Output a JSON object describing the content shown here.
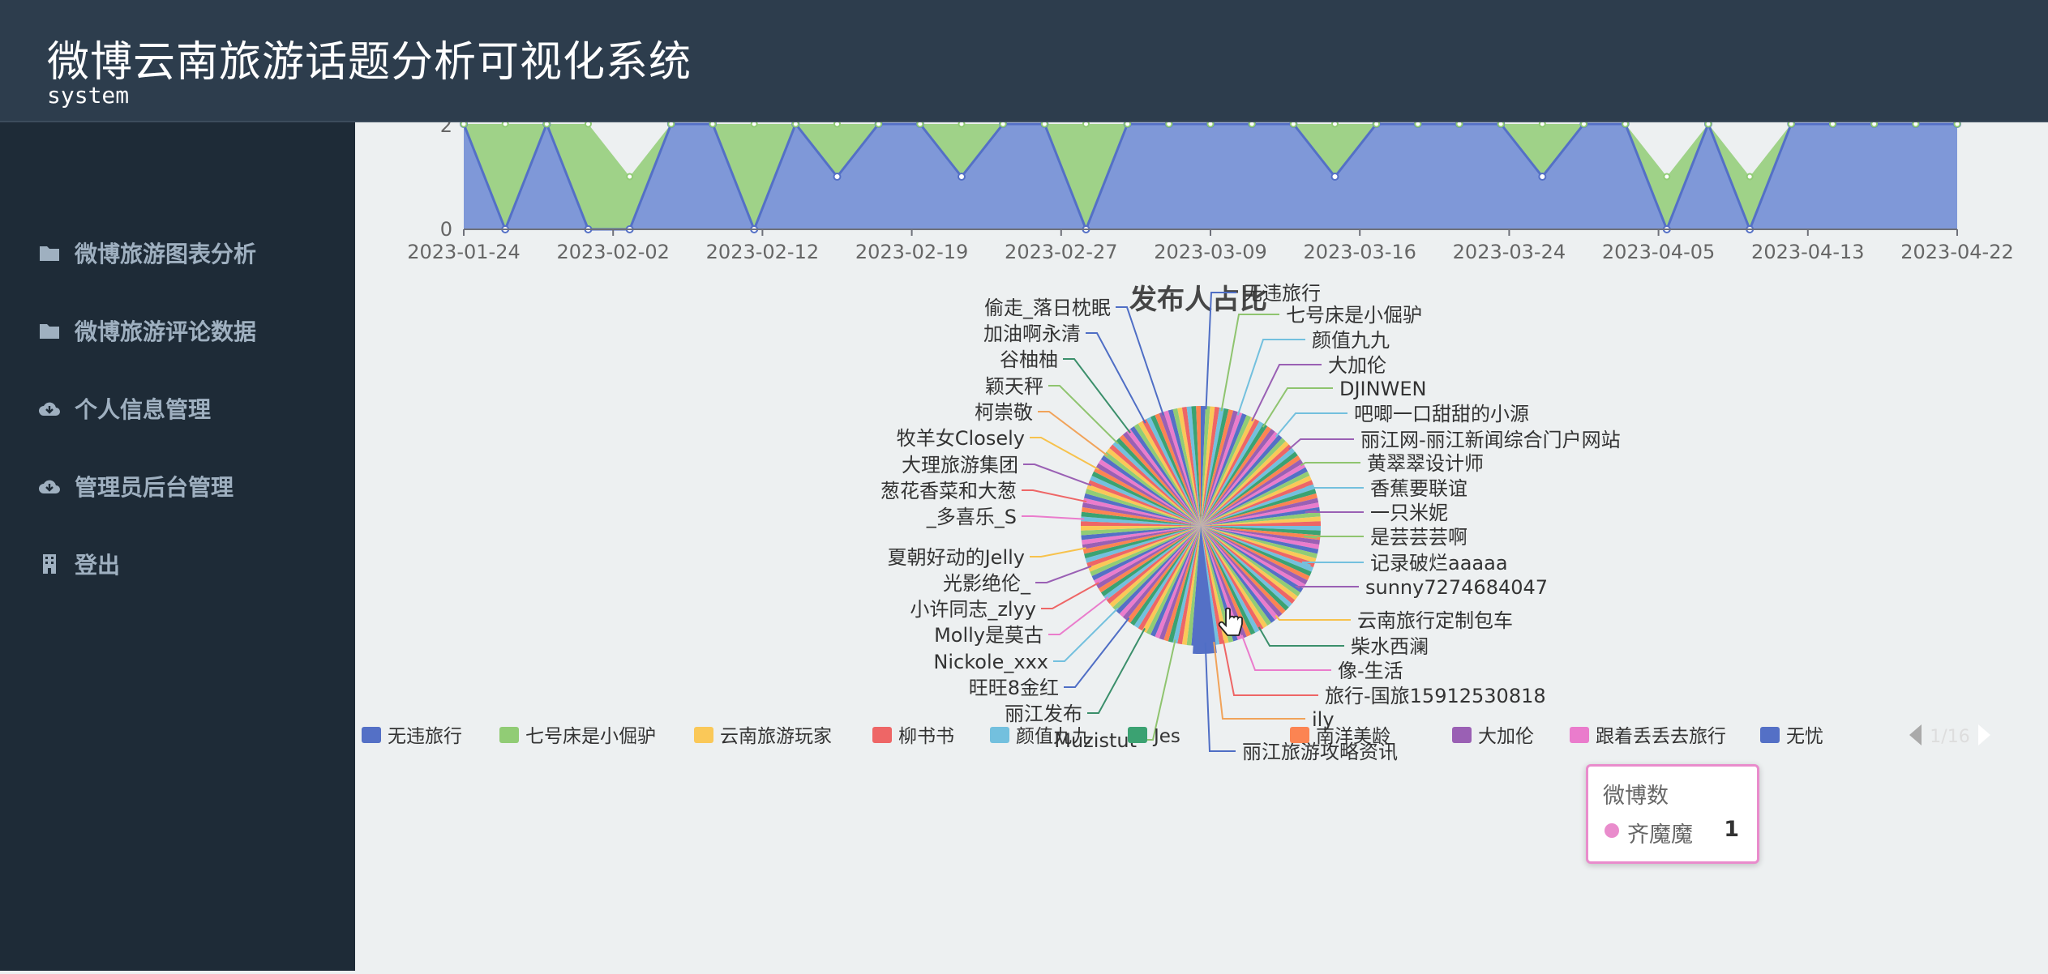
{
  "header": {
    "title": "微博云南旅游话题分析可视化系统",
    "subtitle": "system"
  },
  "sidebar": {
    "items": [
      {
        "label": "微博旅游图表分析",
        "icon": "folder-icon"
      },
      {
        "label": "微博旅游评论数据",
        "icon": "folder-icon"
      },
      {
        "label": "个人信息管理",
        "icon": "cloud-download-icon"
      },
      {
        "label": "管理员后台管理",
        "icon": "cloud-download-icon"
      },
      {
        "label": "登出",
        "icon": "building-icon"
      }
    ]
  },
  "colors": {
    "header_bg": "#2d3d4d",
    "sidebar_bg": "#1e2b37",
    "main_bg": "#edf0f1",
    "blue": "#5470c6",
    "green": "#91cc75"
  },
  "chart_data": [
    {
      "type": "area",
      "x_ticks": [
        "2023-01-24",
        "2023-02-02",
        "2023-02-12",
        "2023-02-19",
        "2023-02-27",
        "2023-03-09",
        "2023-03-16",
        "2023-03-24",
        "2023-04-05",
        "2023-04-13",
        "2023-04-22"
      ],
      "y_ticks": [
        "0",
        "2"
      ],
      "series": [
        {
          "values": [
            2,
            0,
            2,
            0,
            0,
            2,
            2,
            0,
            2,
            1,
            2,
            2,
            1,
            2,
            2,
            0,
            2,
            2,
            2,
            2,
            2,
            1,
            2,
            2,
            2,
            2,
            1,
            2,
            2,
            0,
            2,
            0,
            2,
            2,
            2,
            2,
            2
          ]
        },
        {
          "values": [
            2,
            2,
            2,
            2,
            1,
            2,
            2,
            2,
            2,
            2,
            2,
            2,
            2,
            2,
            2,
            2,
            2,
            2,
            2,
            2,
            2,
            2,
            2,
            2,
            2,
            2,
            2,
            2,
            2,
            1,
            2,
            1,
            2,
            2,
            2,
            2,
            2
          ]
        }
      ]
    },
    {
      "type": "pie",
      "title": "发布人占比",
      "slice_count": 160,
      "labels_left": [
        "偷走_落日枕眠",
        "加油啊永清",
        "谷柚柚",
        "颖天秤",
        "柯崇敬",
        "牧羊女Closely",
        "大理旅游集团",
        "葱花香菜和大葱",
        "_多喜乐_S",
        "夏朝好动的Jelly",
        "光影绝伦_",
        "小许同志_zlyy",
        "Molly是莫古",
        "Nickole_xxx",
        "旺旺8金红",
        "丽江发布",
        "Muzistut"
      ],
      "labels_right": [
        "无违旅行",
        "七号床是小倔驴",
        "颜值九九",
        "大加伦",
        "DJINWEN",
        "吧唧一口甜甜的小源",
        "丽江网-丽江新闻综合门户网站",
        "黄翠翠设计师",
        "香蕉要联谊",
        "一只米妮",
        "是芸芸芸啊",
        "记录破烂aaaaa",
        "sunny7274684047",
        "云南旅行定制包车",
        "柴水西澜",
        "像-生活",
        "旅行-国旅15912530818",
        "ily",
        "丽江旅游攻略资讯"
      ],
      "legend": [
        "无违旅行",
        "七号床是小倔驴",
        "云南旅游玩家",
        "柳书书",
        "颜值九九",
        "Jes",
        "南洋美龄",
        "大加伦",
        "跟着丢丢去旅行",
        "无忧"
      ],
      "legend_page": "1/16",
      "tooltip": {
        "title": "微博数",
        "name": "齐魔魔",
        "value": "1"
      }
    }
  ]
}
